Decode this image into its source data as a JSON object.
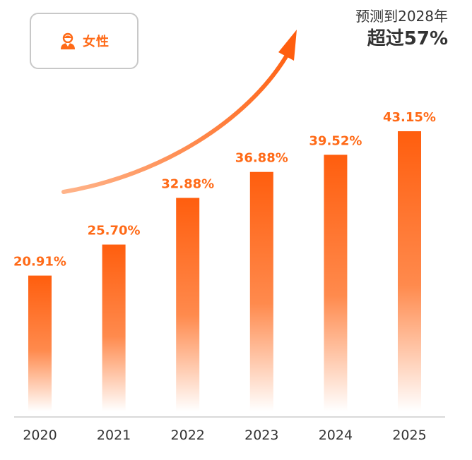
{
  "legend": {
    "label": "女性",
    "icon": "woman-icon"
  },
  "forecast": {
    "line1": "预测到2028年",
    "line2": "超过57%"
  },
  "colors": {
    "bar_top": "#ff5e0e",
    "bar_bottom": "#ffffff",
    "label": "#ff6a17",
    "axis": "#d9d9d9",
    "tick": "#333333"
  },
  "chart_data": {
    "type": "bar",
    "categories": [
      "2020",
      "2021",
      "2022",
      "2023",
      "2024",
      "2025"
    ],
    "values": [
      20.91,
      25.7,
      32.88,
      36.88,
      39.52,
      43.15
    ],
    "data_labels": [
      "20.91%",
      "25.70%",
      "32.88%",
      "36.88%",
      "39.52%",
      "43.15%"
    ],
    "title": "",
    "xlabel": "",
    "ylabel": "",
    "ylim": [
      0,
      50
    ],
    "grid": false,
    "legend": "top-left"
  }
}
